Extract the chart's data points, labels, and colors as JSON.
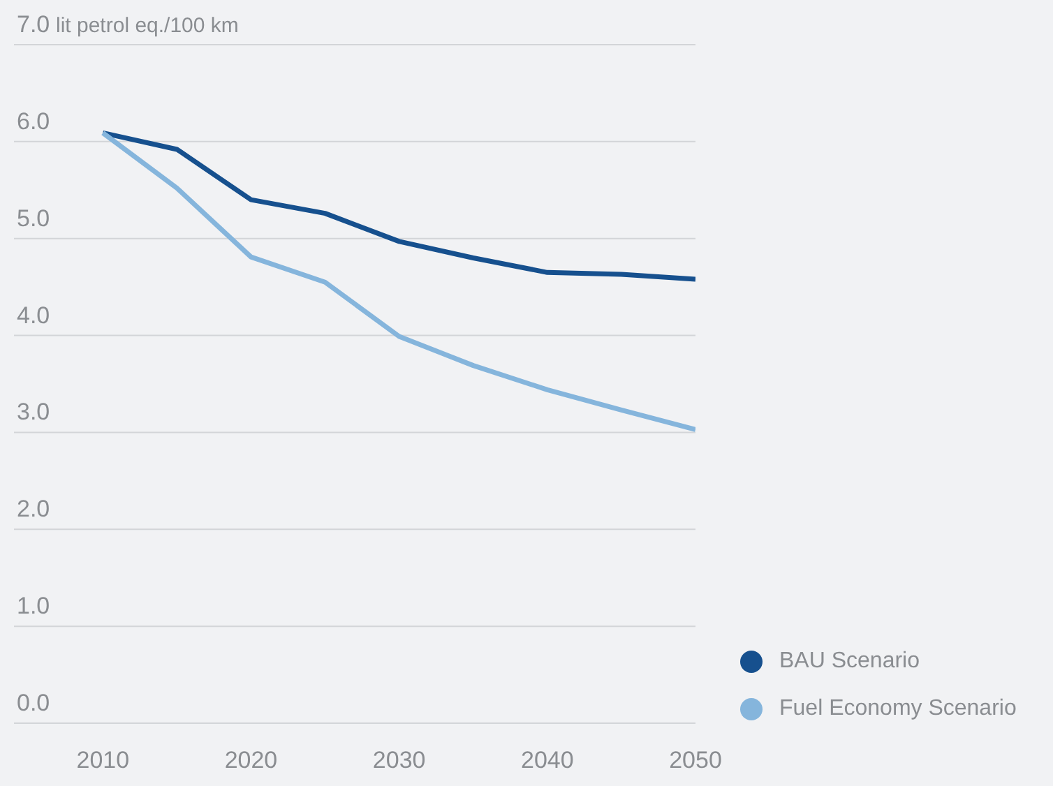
{
  "chart_data": {
    "type": "line",
    "ylabel": "lit petrol eq./100 km",
    "x": [
      2010,
      2015,
      2020,
      2025,
      2030,
      2035,
      2040,
      2045,
      2050
    ],
    "series": [
      {
        "name": "BAU Scenario",
        "color": "#16508e",
        "values": [
          6.09,
          5.92,
          5.4,
          5.26,
          4.97,
          4.8,
          4.65,
          4.63,
          4.58
        ]
      },
      {
        "name": "Fuel Economy Scenario",
        "color": "#85b5dc",
        "values": [
          6.09,
          5.52,
          4.81,
          4.55,
          3.99,
          3.69,
          3.44,
          3.23,
          3.03
        ]
      }
    ],
    "xlim": [
      2004,
      2050
    ],
    "xticks": [
      2010,
      2020,
      2030,
      2040,
      2050
    ],
    "ylim": [
      0,
      7
    ],
    "yticks": [
      {
        "value": 0,
        "label": "0.0"
      },
      {
        "value": 1,
        "label": "1.0"
      },
      {
        "value": 2,
        "label": "2.0"
      },
      {
        "value": 3,
        "label": "3.0"
      },
      {
        "value": 4,
        "label": "4.0"
      },
      {
        "value": 5,
        "label": "5.0"
      },
      {
        "value": 6,
        "label": "6.0"
      },
      {
        "value": 7,
        "label": "7.0"
      }
    ],
    "grid": "y",
    "legend": "bottom right",
    "marker": "none",
    "line_style": "solid"
  }
}
